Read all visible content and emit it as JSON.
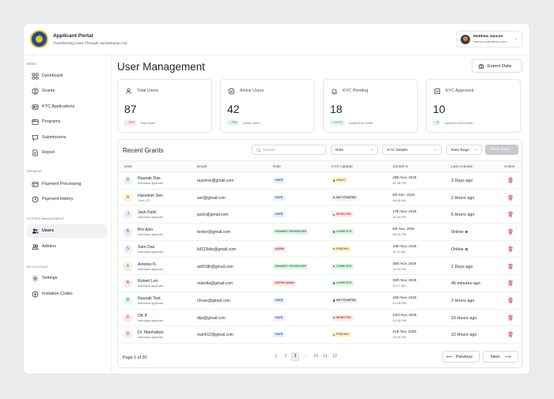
{
  "header": {
    "app_title": "Applicant Portal",
    "app_subtitle": "Transforming Lives Through Humanitarian Aid",
    "user_name": "Matthew Janson",
    "user_email": "mateymon@afterna.com"
  },
  "sidebar": {
    "menu_label": "MENU",
    "payment_label": "PAYMENT",
    "system_label": "SYSTEM MANAGEMENT",
    "account_label": "MY ACCOUNT",
    "items": [
      {
        "label": "Dashboard",
        "icon": "grid-icon"
      },
      {
        "label": "Grants",
        "icon": "dollar-icon"
      },
      {
        "label": "KYC Applications",
        "icon": "kyc-icon"
      },
      {
        "label": "Programs",
        "icon": "folder-icon"
      },
      {
        "label": "Submissions",
        "icon": "inbox-icon"
      },
      {
        "label": "Report",
        "icon": "report-icon"
      },
      {
        "label": "Payment Processing",
        "icon": "card-icon"
      },
      {
        "label": "Payment History",
        "icon": "history-icon"
      },
      {
        "label": "Users",
        "icon": "users-icon",
        "active": true
      },
      {
        "label": "Admins",
        "icon": "admin-icon"
      },
      {
        "label": "Settings",
        "icon": "settings-icon"
      },
      {
        "label": "Invitation Codes",
        "icon": "plus-circle-icon"
      }
    ]
  },
  "main": {
    "title": "User Management",
    "export_label": "Export Data"
  },
  "stats": [
    {
      "label": "Total Users",
      "value": "87",
      "chip": "↓ 12%",
      "note": "This month",
      "trend": "down"
    },
    {
      "label": "Active Users",
      "value": "42",
      "chip": "↑ 75%",
      "note": "Active users",
      "trend": "up"
    },
    {
      "label": "KYC Pending",
      "value": "18",
      "chip": "↑ 4 KYC",
      "note": "Added this month",
      "trend": "up"
    },
    {
      "label": "KYC Approved",
      "value": "10",
      "chip": "↑ 5",
      "note": "Approved this month",
      "trend": "up"
    }
  ],
  "table": {
    "title": "Recent Grants",
    "search_placeholder": "Search",
    "filter_role": "Role",
    "filter_kyc": "KYC Details",
    "filter_date": "Date Rage",
    "reset_label": "Reset filters",
    "columns": [
      "User",
      "Email",
      "Role",
      "KYC Update",
      "Joined At",
      "Last Activate",
      "Action"
    ],
    "rows": [
      {
        "initial": "R",
        "name": "Raunak Das",
        "type": "Individual applicant",
        "email": "rauniron@gmail.com",
        "role": "USER",
        "role_kind": "user",
        "kyc": "DRAFT",
        "kyc_kind": "draft",
        "date": "29th Nov, 2025",
        "time": "04:38 PM",
        "last": "3 Days ago",
        "online": false,
        "color": "#e3f5e8",
        "text_color": "#1e8a4c"
      },
      {
        "initial": "H",
        "name": "Harsdom Sen",
        "type": "Onix LTD.",
        "email": "sen@gmail.com",
        "role": "USER",
        "role_kind": "user",
        "kyc": "NOT STARTED",
        "kyc_kind": "ns",
        "date": "5th Dec, 2025",
        "time": "08:28 AM",
        "last": "2 Hours ago",
        "online": false,
        "color": "#fdf3d6",
        "text_color": "#9a6b00"
      },
      {
        "initial": "J",
        "name": "Jack Kalis",
        "type": "Individual applicant",
        "email": "jackn@gmail.com",
        "role": "USER",
        "role_kind": "user",
        "kyc": "REJECTED",
        "kyc_kind": "rej",
        "date": "17th Nov, 2025",
        "time": "10:44 PM",
        "last": "5 Hours ago",
        "online": false,
        "color": "#e7effd",
        "text_color": "#3c63b6"
      },
      {
        "initial": "B",
        "name": "Bro Asin",
        "type": "Individual applicant",
        "email": "broton@gmail.com",
        "role": "PAYMENT PROSSECER",
        "role_kind": "pp",
        "kyc": "COMPLETE",
        "kyc_kind": "comp",
        "date": "8th Nov, 2025",
        "time": "08:25 PM",
        "last": "Online",
        "online": true,
        "color": "#ede7fb",
        "text_color": "#6a4fb8"
      },
      {
        "initial": "S",
        "name": "Sam Das",
        "type": "Individual applicant",
        "email": "lid123kito@gmail.com",
        "role": "ADMIN",
        "role_kind": "admin",
        "kyc": "PENDING",
        "kyc_kind": "pend",
        "date": "10th Nov, 2025",
        "time": "11:11 AM",
        "last": "Online",
        "online": true,
        "color": "#e7effd",
        "text_color": "#3c63b6"
      },
      {
        "initial": "A",
        "name": "Antonio N",
        "type": "Individual applicant",
        "email": "ant918it@gmail.com",
        "role": "PAYMENT PROSSECER",
        "role_kind": "pp",
        "kyc": "COMPLETE",
        "kyc_kind": "comp",
        "date": "30th Nov, 2025",
        "time": "12:04 PM",
        "last": "2 Days ago",
        "online": false,
        "color": "#fdebdc",
        "text_color": "#c0651b"
      },
      {
        "initial": "R",
        "name": "Robert Len",
        "type": "Individual applicant",
        "email": "robertla@gmail.com",
        "role": "SUPER ADMIN",
        "role_kind": "admin",
        "kyc": "COMPLETE",
        "kyc_kind": "comp",
        "date": "30th Nov, 2025",
        "time": "11:27 AM",
        "last": "45 minutes ago",
        "online": false,
        "color": "#fde8e8",
        "text_color": "#c0392b"
      },
      {
        "initial": "R",
        "name": "Raunak Test",
        "type": "Individual applicant",
        "email": "t2ruve@gmail.com",
        "role": "USER",
        "role_kind": "user",
        "kyc": "NOT STARTED",
        "kyc_kind": "ns",
        "date": "30th Nov, 2025",
        "time": "03:28 PM",
        "last": "2 Hours ago",
        "online": false,
        "color": "#e3f5e8",
        "text_color": "#1e8a4c"
      },
      {
        "initial": "D",
        "name": "DK P",
        "type": "Individual applicant",
        "email": "dkp@gmail.com",
        "role": "USER",
        "role_kind": "user",
        "kyc": "REJECTED",
        "kyc_kind": "rej",
        "date": "23rd Nov, 2025",
        "time": "01:00 PM",
        "last": "15 Hours ago",
        "online": false,
        "color": "#fde8e8",
        "text_color": "#c0392b"
      },
      {
        "initial": "D",
        "name": "Dr. Manhattan",
        "type": "Individual applicant",
        "email": "manh12@gmail.com",
        "role": "USER",
        "role_kind": "user",
        "kyc": "PENDING",
        "kyc_kind": "pend",
        "date": "21st Nov, 2025",
        "time": "12:09 PM",
        "last": "22 Hours ago",
        "online": false,
        "color": "#fde8e8",
        "text_color": "#c0392b"
      }
    ],
    "page_text": "Page 1 of 30",
    "pages": [
      "1",
      "2",
      "3",
      "...",
      "10",
      "11",
      "12"
    ],
    "active_page": "3",
    "prev_label": "Previous",
    "next_label": "Next"
  }
}
